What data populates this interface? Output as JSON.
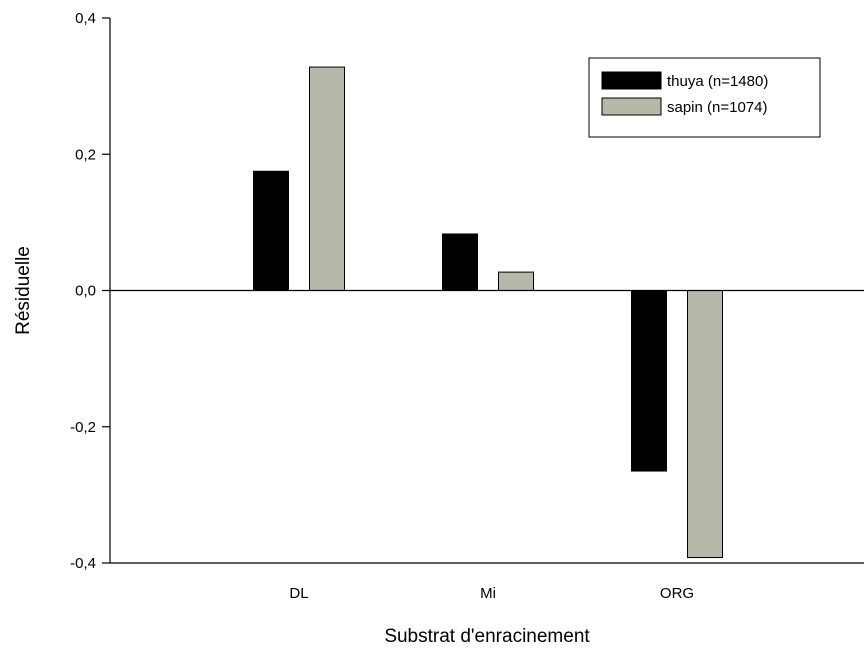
{
  "chart_data": {
    "type": "bar",
    "categories": [
      "DL",
      "Mi",
      "ORG"
    ],
    "series": [
      {
        "name": "thuya (n=1480)",
        "values": [
          0.175,
          0.083,
          -0.265
        ],
        "color": "#000000"
      },
      {
        "name": "sapin (n=1074)",
        "values": [
          0.328,
          0.027,
          -0.392
        ],
        "color": "#b8b8aa"
      }
    ],
    "xlabel": "Substrat d'enracinement",
    "ylabel": "Résiduelle",
    "ylim": [
      -0.4,
      0.4
    ],
    "yticks": [
      0.4,
      0.2,
      0.0,
      -0.2,
      -0.4
    ],
    "ytick_labels": [
      "0,4",
      "0,2",
      "0,0",
      "-0,2",
      "-0,4"
    ],
    "grid": false,
    "legend_position": "top-right"
  }
}
